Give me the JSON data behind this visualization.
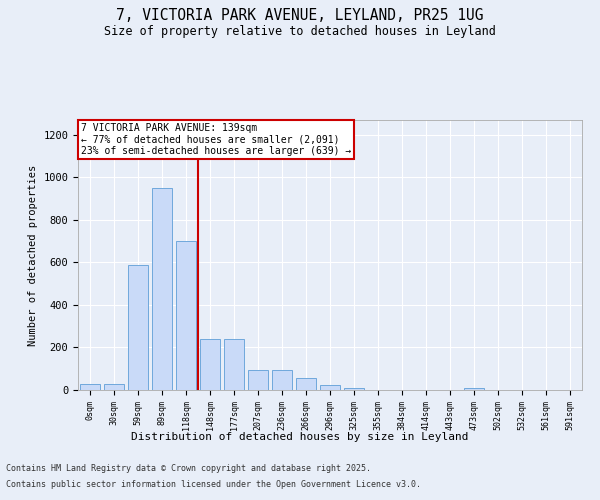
{
  "title_line1": "7, VICTORIA PARK AVENUE, LEYLAND, PR25 1UG",
  "title_line2": "Size of property relative to detached houses in Leyland",
  "xlabel": "Distribution of detached houses by size in Leyland",
  "ylabel": "Number of detached properties",
  "bar_labels": [
    "0sqm",
    "30sqm",
    "59sqm",
    "89sqm",
    "118sqm",
    "148sqm",
    "177sqm",
    "207sqm",
    "236sqm",
    "266sqm",
    "296sqm",
    "325sqm",
    "355sqm",
    "384sqm",
    "414sqm",
    "443sqm",
    "473sqm",
    "502sqm",
    "532sqm",
    "561sqm",
    "591sqm"
  ],
  "bar_values": [
    30,
    30,
    590,
    950,
    700,
    240,
    240,
    95,
    95,
    55,
    25,
    8,
    2,
    2,
    2,
    2,
    10,
    2,
    2,
    2,
    2
  ],
  "bar_color": "#c9daf8",
  "bar_edge_color": "#6fa8dc",
  "property_line_x": 4.5,
  "property_line_color": "#cc0000",
  "annotation_title": "7 VICTORIA PARK AVENUE: 139sqm",
  "annotation_line1": "← 77% of detached houses are smaller (2,091)",
  "annotation_line2": "23% of semi-detached houses are larger (639) →",
  "annotation_box_color": "#cc0000",
  "ylim": [
    0,
    1270
  ],
  "yticks": [
    0,
    200,
    400,
    600,
    800,
    1000,
    1200
  ],
  "footer_line1": "Contains HM Land Registry data © Crown copyright and database right 2025.",
  "footer_line2": "Contains public sector information licensed under the Open Government Licence v3.0.",
  "background_color": "#e8eef8",
  "plot_bg_color": "#e8eef8"
}
